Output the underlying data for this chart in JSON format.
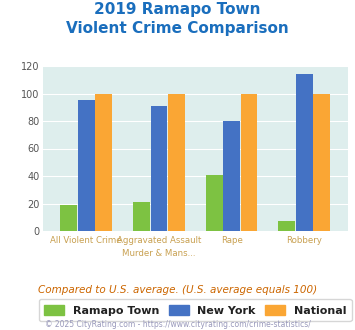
{
  "title_line1": "2019 Ramapo Town",
  "title_line2": "Violent Crime Comparison",
  "cat_labels_top": [
    "",
    "Aggravated Assault",
    "",
    ""
  ],
  "cat_labels_bot": [
    "All Violent Crime",
    "Murder & Mans...",
    "Rape",
    "Robbery"
  ],
  "ramapo": [
    19,
    21,
    41,
    7
  ],
  "newyork": [
    95,
    91,
    80,
    114
  ],
  "national": [
    100,
    100,
    100,
    100
  ],
  "colors": {
    "ramapo": "#7dc242",
    "newyork": "#4472c4",
    "national": "#faa634",
    "background": "#deeeed",
    "title": "#1a6ebd",
    "axis_text": "#c8a050",
    "legend_text": "#222222",
    "footer_text": "#9999bb",
    "note_text": "#cc6600",
    "grid": "#ffffff"
  },
  "ylim": [
    0,
    120
  ],
  "yticks": [
    0,
    20,
    40,
    60,
    80,
    100,
    120
  ],
  "legend_labels": [
    "Ramapo Town",
    "New York",
    "National"
  ],
  "note": "Compared to U.S. average. (U.S. average equals 100)",
  "footer": "© 2025 CityRating.com - https://www.cityrating.com/crime-statistics/"
}
